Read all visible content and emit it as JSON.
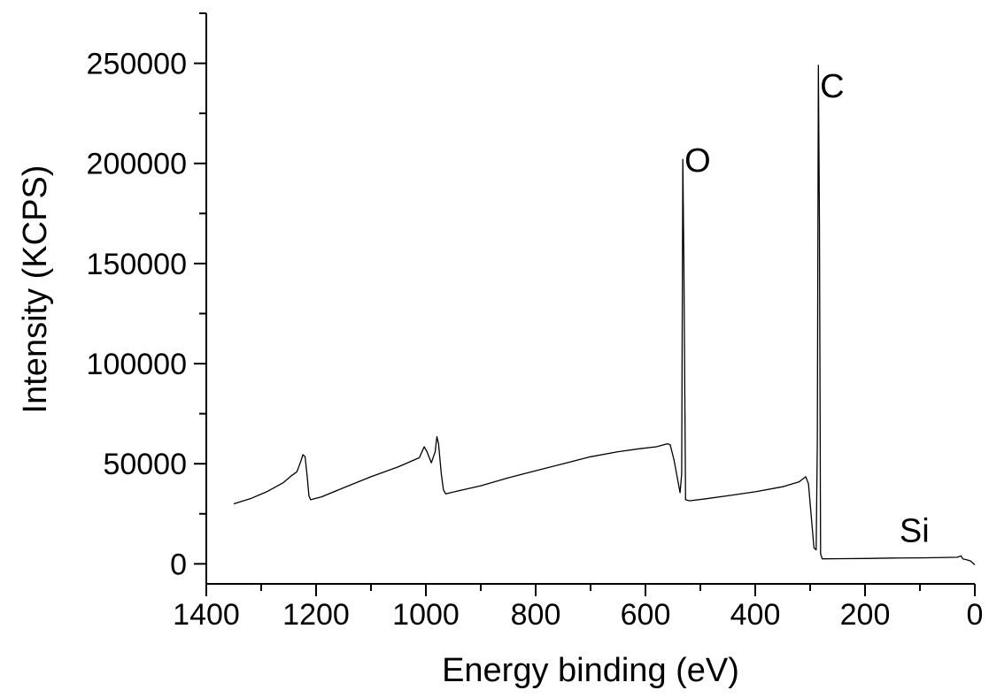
{
  "chart_data": {
    "type": "line",
    "title": "",
    "xlabel": "Energy binding (eV)",
    "ylabel": "Intensity (KCPS)",
    "xlim": [
      1400,
      0
    ],
    "ylim": [
      -10000,
      275000
    ],
    "x_reversed": true,
    "grid": false,
    "legend": "none",
    "x_ticks": [
      1400,
      1200,
      1000,
      800,
      600,
      400,
      200,
      0
    ],
    "x_tick_labels": [
      "1400",
      "1200",
      "1000",
      "800",
      "600",
      "400",
      "200",
      "0"
    ],
    "y_ticks": [
      0,
      50000,
      100000,
      150000,
      200000,
      250000
    ],
    "y_tick_labels": [
      "0",
      "50000",
      "100000",
      "150000",
      "200000",
      "250000"
    ],
    "annotations": [
      {
        "text": "C",
        "x": 260,
        "y": 233000
      },
      {
        "text": "O",
        "x": 505,
        "y": 196000
      },
      {
        "text": "Si",
        "x": 110,
        "y": 11000
      }
    ],
    "series": [
      {
        "color": "#000000",
        "points": [
          [
            1350,
            30000
          ],
          [
            1320,
            32500
          ],
          [
            1290,
            36000
          ],
          [
            1260,
            40500
          ],
          [
            1245,
            44000
          ],
          [
            1235,
            46000
          ],
          [
            1228,
            51000
          ],
          [
            1224,
            54500
          ],
          [
            1220,
            53500
          ],
          [
            1216,
            43000
          ],
          [
            1213,
            34000
          ],
          [
            1210,
            32000
          ],
          [
            1190,
            33500
          ],
          [
            1150,
            38000
          ],
          [
            1100,
            43500
          ],
          [
            1050,
            48500
          ],
          [
            1012,
            53000
          ],
          [
            1003,
            58500
          ],
          [
            998,
            56000
          ],
          [
            990,
            50500
          ],
          [
            983,
            56000
          ],
          [
            980,
            63500
          ],
          [
            977,
            60000
          ],
          [
            972,
            45000
          ],
          [
            968,
            37000
          ],
          [
            964,
            35000
          ],
          [
            940,
            36500
          ],
          [
            900,
            39000
          ],
          [
            850,
            43000
          ],
          [
            800,
            46500
          ],
          [
            750,
            50000
          ],
          [
            700,
            53500
          ],
          [
            650,
            56000
          ],
          [
            610,
            57500
          ],
          [
            580,
            58500
          ],
          [
            560,
            60000
          ],
          [
            555,
            59500
          ],
          [
            548,
            52000
          ],
          [
            542,
            43000
          ],
          [
            537,
            35500
          ],
          [
            534,
            45000
          ],
          [
            532,
            202000
          ],
          [
            530,
            150000
          ],
          [
            527,
            32000
          ],
          [
            520,
            31500
          ],
          [
            490,
            32500
          ],
          [
            450,
            34000
          ],
          [
            400,
            36000
          ],
          [
            350,
            38500
          ],
          [
            320,
            41000
          ],
          [
            308,
            43500
          ],
          [
            303,
            40000
          ],
          [
            298,
            24000
          ],
          [
            293,
            8000
          ],
          [
            289,
            7000
          ],
          [
            287,
            60000
          ],
          [
            285,
            249000
          ],
          [
            283,
            170000
          ],
          [
            281,
            5000
          ],
          [
            278,
            2500
          ],
          [
            240,
            2600
          ],
          [
            200,
            2700
          ],
          [
            150,
            2900
          ],
          [
            100,
            3000
          ],
          [
            50,
            3200
          ],
          [
            32,
            3300
          ],
          [
            25,
            4000
          ],
          [
            22,
            2500
          ],
          [
            15,
            2000
          ],
          [
            8,
            1500
          ],
          [
            0,
            -500
          ]
        ]
      }
    ]
  }
}
